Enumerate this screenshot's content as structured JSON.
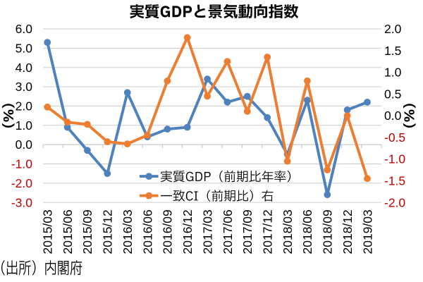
{
  "title": "実質GDPと景気動向指数",
  "source_note": "（出所）内閣府",
  "axis_left": {
    "title": "（%）",
    "labels": [
      "6.0",
      "5.0",
      "4.0",
      "3.0",
      "2.0",
      "1.0",
      "0.0",
      "-1.0",
      "-2.0",
      "-3.0"
    ]
  },
  "axis_right": {
    "title": "（%）",
    "labels": [
      "2.0",
      "1.5",
      "1.0",
      "0.5",
      "0.0",
      "-0.5",
      "-1.0",
      "-1.5",
      "-2.0"
    ]
  },
  "legend": {
    "items": [
      {
        "label": "実質GDP（前期比年率）",
        "series": "gdp"
      },
      {
        "label": "一致CI（前期比）右",
        "series": "ci"
      }
    ]
  },
  "colors": {
    "gdp_blue": "#4F81BD",
    "ci_orange": "#ED7D31",
    "gridline": "#CDCDCD",
    "axis_line": "#BFBFBF",
    "negative_label_red": "#C00000",
    "text_black": "#000000"
  },
  "chart_data": {
    "type": "line",
    "title": "実質GDPと景気動向指数",
    "categories": [
      "2015/03",
      "2015/06",
      "2015/09",
      "2015/12",
      "2016/03",
      "2016/06",
      "2016/09",
      "2016/12",
      "2017/03",
      "2017/06",
      "2017/09",
      "2017/12",
      "2018/03",
      "2018/06",
      "2018/09",
      "2018/12",
      "2019/03"
    ],
    "series": [
      {
        "name": "実質GDP（前期比年率）",
        "axis": "left",
        "color": "#4F81BD",
        "values": [
          5.3,
          0.9,
          -0.3,
          -1.5,
          2.7,
          0.4,
          0.8,
          0.9,
          3.4,
          2.2,
          2.5,
          1.4,
          -0.5,
          2.3,
          -2.6,
          1.8,
          2.2
        ]
      },
      {
        "name": "一致CI（前期比）右",
        "axis": "right",
        "color": "#ED7D31",
        "values": [
          0.2,
          -0.15,
          -0.2,
          -0.6,
          -0.65,
          -0.45,
          0.8,
          1.8,
          0.45,
          1.25,
          0.1,
          1.35,
          -1.05,
          0.8,
          -1.25,
          0.0,
          -1.45
        ]
      }
    ],
    "ylabel_left": "（%）",
    "ylabel_right": "（%）",
    "ylim_left": [
      -3.0,
      6.0
    ],
    "ylim_right": [
      -2.0,
      2.0
    ],
    "grid": true,
    "legend_position": "inside lower right",
    "marker": "circle",
    "source": "（出所）内閣府"
  }
}
